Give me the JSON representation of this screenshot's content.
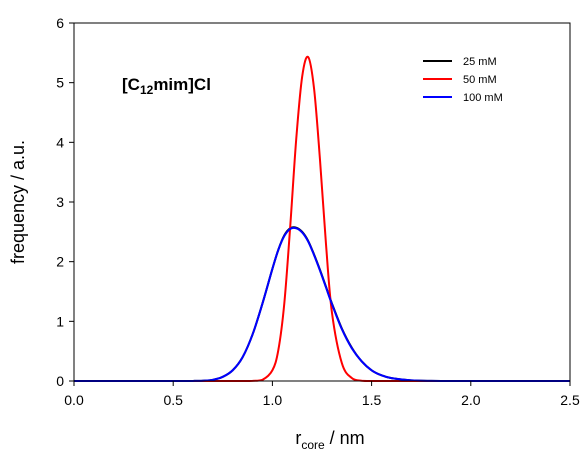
{
  "chart_data": {
    "type": "line",
    "title": "",
    "annotation": {
      "main": "[C",
      "sub": "12",
      "rest": "mim]Cl"
    },
    "xlabel": {
      "main": "r",
      "sub": "core",
      "rest": " / nm"
    },
    "ylabel": "frequency / a.u.",
    "xlim": [
      0.0,
      2.5
    ],
    "ylim": [
      0,
      6
    ],
    "xticks": [
      0.0,
      0.5,
      1.0,
      1.5,
      2.0,
      2.5
    ],
    "xtick_labels": [
      "0.0",
      "0.5",
      "1.0",
      "1.5",
      "2.0",
      "2.5"
    ],
    "yticks": [
      0,
      1,
      2,
      3,
      4,
      5,
      6
    ],
    "ytick_labels": [
      "0",
      "1",
      "2",
      "3",
      "4",
      "5",
      "6"
    ],
    "grid": false,
    "legend_position": "top-right",
    "x": [
      0.0,
      0.1,
      0.2,
      0.3,
      0.4,
      0.5,
      0.6,
      0.65,
      0.7,
      0.75,
      0.8,
      0.85,
      0.9,
      0.95,
      1.0,
      1.03,
      1.06,
      1.09,
      1.12,
      1.15,
      1.18,
      1.21,
      1.24,
      1.27,
      1.3,
      1.35,
      1.4,
      1.45,
      1.5,
      1.55,
      1.6,
      1.7,
      1.8,
      1.9,
      2.0,
      2.2,
      2.4,
      2.5
    ],
    "series": [
      {
        "name": "25 mM",
        "color": "#000000",
        "values": [
          0,
          0,
          0,
          0,
          0,
          0,
          0.001,
          0.005,
          0.02,
          0.07,
          0.18,
          0.4,
          0.78,
          1.3,
          1.88,
          2.2,
          2.44,
          2.56,
          2.57,
          2.5,
          2.35,
          2.12,
          1.86,
          1.58,
          1.3,
          0.88,
          0.56,
          0.33,
          0.18,
          0.095,
          0.048,
          0.011,
          0.002,
          0.0005,
          0,
          0,
          0,
          0
        ]
      },
      {
        "name": "50 mM",
        "color": "#ff0000",
        "values": [
          0,
          0,
          0,
          0,
          0,
          0,
          0,
          0,
          0,
          0,
          0,
          0,
          0.002,
          0.02,
          0.18,
          0.52,
          1.3,
          2.6,
          4.05,
          5.1,
          5.43,
          4.9,
          3.7,
          2.3,
          1.15,
          0.3,
          0.05,
          0.005,
          0,
          0,
          0,
          0,
          0,
          0,
          0,
          0,
          0,
          0
        ]
      },
      {
        "name": "100 mM",
        "color": "#0000ff",
        "values": [
          0,
          0,
          0,
          0,
          0,
          0,
          0.001,
          0.005,
          0.02,
          0.07,
          0.18,
          0.4,
          0.78,
          1.3,
          1.88,
          2.2,
          2.43,
          2.55,
          2.56,
          2.49,
          2.34,
          2.11,
          1.85,
          1.57,
          1.29,
          0.87,
          0.55,
          0.33,
          0.18,
          0.095,
          0.048,
          0.011,
          0.002,
          0.0005,
          0,
          0,
          0,
          0
        ]
      }
    ]
  }
}
